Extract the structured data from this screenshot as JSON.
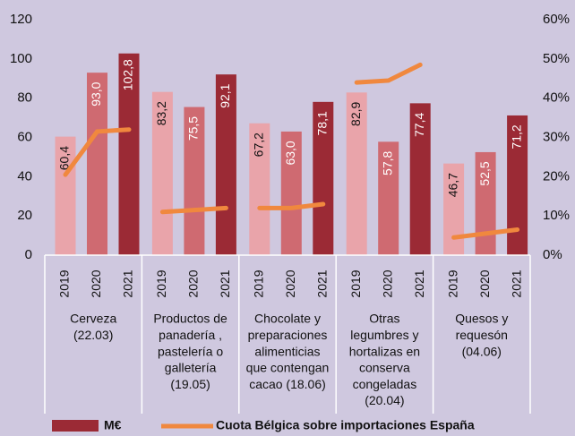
{
  "chart_data": {
    "type": "bar",
    "categories": [
      "2019",
      "2020",
      "2021",
      "2019",
      "2020",
      "2021",
      "2019",
      "2020",
      "2021",
      "2019",
      "2020",
      "2021",
      "2019",
      "2020",
      "2021"
    ],
    "groups": [
      [
        "Cerveza",
        "(22.03)"
      ],
      [
        "Productos de",
        "panadería ,",
        "pastelería o",
        "galletería",
        "(19.05)"
      ],
      [
        "Chocolate y",
        "preparaciones",
        "alimenticias",
        "que contengan",
        "cacao  (18.06)"
      ],
      [
        "Otras",
        "legumbres y",
        "hortalizas en",
        "conserva",
        "congeladas",
        "(20.04)"
      ],
      [
        "Quesos y",
        "requesón",
        "(04.06)"
      ]
    ],
    "series": [
      {
        "name": "M€",
        "color": "#9b2a35",
        "bar_colors": [
          "#e9a4aa",
          "#cf6a71",
          "#9b2a35"
        ],
        "values": [
          60.4,
          93.0,
          102.8,
          83.2,
          75.5,
          92.1,
          67.2,
          63.0,
          78.1,
          82.9,
          57.8,
          77.4,
          46.7,
          52.5,
          71.2
        ],
        "value_labels": [
          "60,4",
          "93,0",
          "102,8",
          "83,2",
          "75,5",
          "92,1",
          "67,2",
          "63,0",
          "78,1",
          "82,9",
          "57,8",
          "77,4",
          "46,7",
          "52,5",
          "71,2"
        ]
      },
      {
        "name": "Cuota Bélgica sobre importaciones España",
        "type": "line",
        "axis": "y2",
        "color": "#f0883e",
        "values": [
          20.5,
          31.5,
          32,
          11,
          11.5,
          12,
          12,
          12,
          13,
          44,
          44.5,
          48.5,
          4.5,
          5.5,
          6.5
        ]
      }
    ],
    "ylim": [
      0,
      120
    ],
    "yticks": [
      0,
      20,
      40,
      60,
      80,
      100,
      120
    ],
    "y2lim": [
      0,
      60
    ],
    "y2ticks": [
      {
        "value": 0,
        "label": "0%"
      },
      {
        "value": 10,
        "label": "10%"
      },
      {
        "value": 20,
        "label": "20%"
      },
      {
        "value": 30,
        "label": "30%"
      },
      {
        "value": 40,
        "label": "40%"
      },
      {
        "value": 50,
        "label": "50%"
      },
      {
        "value": 60,
        "label": "60%"
      }
    ]
  }
}
